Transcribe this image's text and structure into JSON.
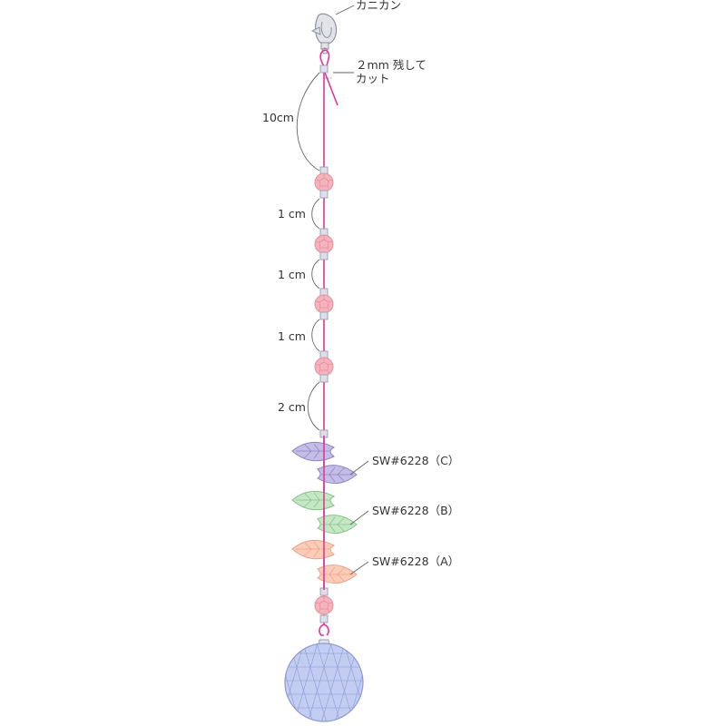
{
  "labels": {
    "clasp": "カニカン",
    "cut_line1": "２mm 残して",
    "cut_line2": "カット",
    "dim_top": "10cm",
    "dim_1": "1 cm",
    "dim_2": "1 cm",
    "dim_3": "1 cm",
    "dim_4": "2 cm",
    "part_c": "SW#6228（C）",
    "part_b": "SW#6228（B）",
    "part_a": "SW#6228（A）"
  },
  "colors": {
    "thread": "#e0379a",
    "bead_fill": "#f6b3bd",
    "bead_stroke": "#e48f9c",
    "crimp_fill": "#dde0ea",
    "crimp_stroke": "#9a9eb0",
    "leaf_c_fill": "#c4bde6",
    "leaf_c_stroke": "#8e84c4",
    "leaf_b_fill": "#c4e8c4",
    "leaf_b_stroke": "#88c088",
    "leaf_a_fill": "#fbcdb8",
    "leaf_a_stroke": "#eda088",
    "ball_fill": "#c2cdf1",
    "ball_stroke": "#8a9bd6",
    "clasp_fill": "#e2e4ea",
    "clasp_stroke": "#8e929e",
    "line": "#666666"
  }
}
